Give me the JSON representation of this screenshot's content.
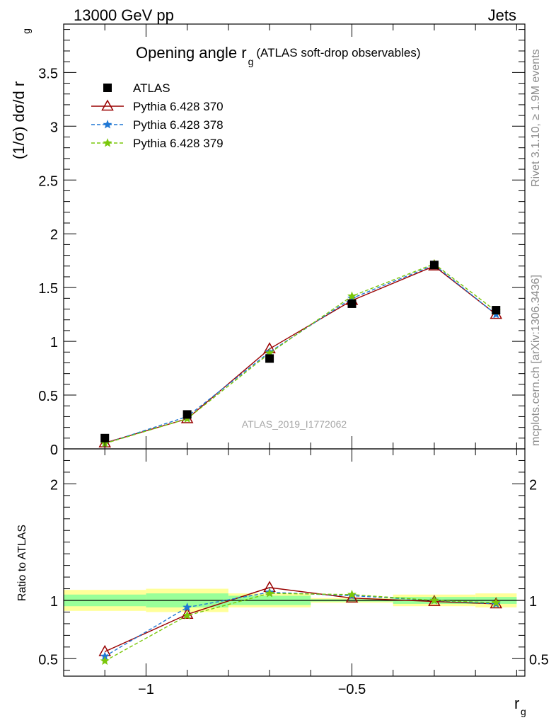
{
  "header": {
    "left": "13000 GeV pp",
    "right": "Jets"
  },
  "side_labels": {
    "top": "Rivet 3.1.10, ≥ 1.9M events",
    "bottom": "mcplots.cern.ch [arXiv:1306.3436]"
  },
  "chart_data": {
    "type": "line",
    "title_main": "Opening angle r",
    "title_sub": "g",
    "title_paren": "(ATLAS soft-drop observables)",
    "ylabel": "(1/σ) dσ/d r",
    "ylabel_sub": "g",
    "xlabel": "r",
    "xlabel_sub": "g",
    "watermark": "ATLAS_2019_I1772062",
    "xlim": [
      -1.2,
      -0.08
    ],
    "ylim_main": [
      0,
      3.95
    ],
    "y_ticks_main": [
      "0",
      "0.5",
      "1",
      "1.5",
      "2",
      "2.5",
      "3",
      "3.5"
    ],
    "x_ticks": [
      "−1",
      "−0.5"
    ],
    "ratio": {
      "ylabel": "Ratio to ATLAS",
      "ylim": [
        0.35,
        2.3
      ],
      "y_ticks": [
        "0.5",
        "1",
        "2"
      ]
    },
    "bins": [
      [
        -1.2,
        -1.0
      ],
      [
        -1.0,
        -0.8
      ],
      [
        -0.8,
        -0.6
      ],
      [
        -0.6,
        -0.4
      ],
      [
        -0.4,
        -0.2
      ],
      [
        -0.2,
        -0.1
      ]
    ],
    "x": [
      -1.1,
      -0.9,
      -0.7,
      -0.5,
      -0.3,
      -0.15
    ],
    "data": {
      "name": "ATLAS",
      "values": [
        0.1,
        0.32,
        0.84,
        1.35,
        1.71,
        1.29
      ],
      "band_inner": [
        0.05,
        0.06,
        0.04,
        0.01,
        0.03,
        0.03
      ],
      "band_outer": [
        0.09,
        0.1,
        0.06,
        0.02,
        0.05,
        0.06
      ]
    },
    "series": [
      {
        "name": "Pythia 6.428 370",
        "color": "#990000",
        "style": "solid",
        "marker": "open-triangle",
        "values": [
          0.055,
          0.28,
          0.93,
          1.38,
          1.7,
          1.25
        ],
        "ratio": [
          0.56,
          0.88,
          1.11,
          1.02,
          0.99,
          0.97
        ]
      },
      {
        "name": "Pythia 6.428 378",
        "color": "#1f77d4",
        "style": "dashed",
        "marker": "star",
        "values": [
          0.05,
          0.3,
          0.9,
          1.4,
          1.71,
          1.25
        ],
        "ratio": [
          0.52,
          0.94,
          1.07,
          1.04,
          1.0,
          0.97
        ]
      },
      {
        "name": "Pythia 6.428 379",
        "color": "#7ac70a",
        "style": "dashed",
        "marker": "star",
        "values": [
          0.05,
          0.28,
          0.89,
          1.42,
          1.72,
          1.28
        ],
        "ratio": [
          0.48,
          0.87,
          1.06,
          1.05,
          1.0,
          0.98
        ]
      }
    ],
    "legend_position": "top-left"
  }
}
